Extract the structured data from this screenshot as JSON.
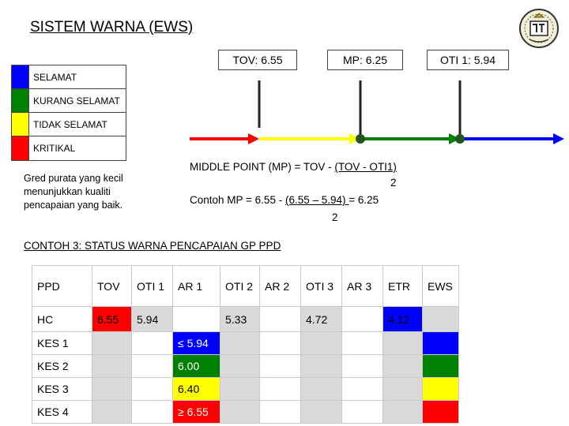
{
  "title": "SISTEM WARNA (EWS)",
  "legend": [
    {
      "label": "SELAMAT",
      "color": "#0000ff"
    },
    {
      "label": "KURANG SELAMAT",
      "color": "#008000"
    },
    {
      "label": "TIDAK SELAMAT",
      "color": "#ffff00"
    },
    {
      "label": "KRITIKAL",
      "color": "#ff0000"
    }
  ],
  "markers": {
    "tov": "TOV: 6.55",
    "mp": "MP: 6.25",
    "oti1": "OTI 1: 5.94"
  },
  "note": "Gred purata yang kecil menunjukkan kualiti pencapaian yang baik.",
  "formula": {
    "line1_prefix": "MIDDLE POINT (MP) = TOV - ",
    "line1_underlined": "(TOV - OTI1)",
    "line1_denominator": "2",
    "line2_prefix": "Contoh MP = 6.55 - ",
    "line2_underlined": "(6.55 – 5.94) ",
    "line2_suffix": "= 6.25",
    "line2_denominator": "2"
  },
  "section_title": "CONTOH 3: STATUS WARNA PENCAPAIAN GP PPD",
  "table": {
    "headers": [
      "PPD",
      "TOV",
      "OTI 1",
      "AR 1",
      "OTI 2",
      "AR 2",
      "OTI 3",
      "AR 3",
      "ETR",
      "EWS"
    ],
    "hc": {
      "label": "HC",
      "tov": "6.55",
      "oti1": "5.94",
      "oti2": "5.33",
      "oti3": "4.72",
      "etr": "4.12"
    },
    "kes": [
      {
        "label": "KES 1",
        "ar1": "≤ 5.94",
        "ews_color": "#0000ff"
      },
      {
        "label": "KES 2",
        "ar1": "6.00",
        "ews_color": "#008000"
      },
      {
        "label": "KES 3",
        "ar1": "6.40",
        "ews_color": "#ffff00"
      },
      {
        "label": "KES 4",
        "ar1": "≥ 6.55",
        "ews_color": "#ff0000"
      }
    ]
  },
  "icons": {
    "logo": "crest-logo-icon"
  }
}
